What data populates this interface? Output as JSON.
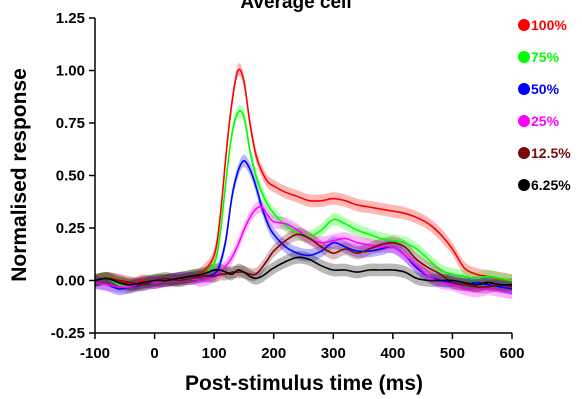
{
  "chart_data": {
    "type": "line",
    "title": "Average cell",
    "xlabel": "Post-stimulus time (ms)",
    "ylabel": "Normalised response",
    "xlim": [
      -100,
      600
    ],
    "ylim": [
      -0.25,
      1.25
    ],
    "xticks": [
      "-100",
      "0",
      "100",
      "200",
      "300",
      "400",
      "500",
      "600"
    ],
    "xtick_values": [
      -100,
      0,
      100,
      200,
      300,
      400,
      500,
      600
    ],
    "yticks": [
      "-0.25",
      "0.00",
      "0.25",
      "0.50",
      "0.75",
      "1.00",
      "1.25"
    ],
    "ytick_values": [
      -0.25,
      0,
      0.25,
      0.5,
      0.75,
      1.0,
      1.25
    ],
    "grid": false,
    "legend_position": "right",
    "x": [
      -100,
      -80,
      -60,
      -40,
      -20,
      0,
      20,
      40,
      60,
      80,
      100,
      110,
      120,
      130,
      140,
      150,
      160,
      170,
      180,
      190,
      200,
      220,
      240,
      260,
      280,
      300,
      320,
      340,
      360,
      380,
      400,
      420,
      440,
      460,
      480,
      500,
      520,
      540,
      560,
      580,
      600
    ],
    "series": [
      {
        "name": "100%",
        "color": "#ff0000",
        "band": 0.03,
        "values": [
          0.0,
          0.01,
          0.0,
          -0.02,
          0.0,
          -0.01,
          0.0,
          0.01,
          0.02,
          0.04,
          0.12,
          0.3,
          0.6,
          0.85,
          1.0,
          0.95,
          0.75,
          0.6,
          0.52,
          0.47,
          0.45,
          0.42,
          0.4,
          0.38,
          0.38,
          0.39,
          0.38,
          0.36,
          0.35,
          0.34,
          0.33,
          0.32,
          0.3,
          0.27,
          0.22,
          0.15,
          0.06,
          0.03,
          0.02,
          0.01,
          0.0
        ]
      },
      {
        "name": "75%",
        "color": "#00ff00",
        "band": 0.03,
        "values": [
          0.0,
          0.01,
          -0.02,
          -0.03,
          -0.01,
          0.0,
          0.01,
          0.0,
          0.02,
          0.03,
          0.08,
          0.22,
          0.48,
          0.7,
          0.8,
          0.78,
          0.62,
          0.5,
          0.42,
          0.36,
          0.32,
          0.26,
          0.23,
          0.21,
          0.24,
          0.29,
          0.27,
          0.24,
          0.22,
          0.2,
          0.19,
          0.18,
          0.15,
          0.1,
          0.05,
          0.03,
          0.02,
          0.01,
          0.02,
          0.01,
          0.0
        ]
      },
      {
        "name": "50%",
        "color": "#0000ff",
        "band": 0.03,
        "values": [
          -0.01,
          -0.02,
          -0.04,
          -0.03,
          -0.02,
          -0.01,
          0.0,
          0.01,
          0.01,
          0.02,
          0.03,
          0.08,
          0.2,
          0.4,
          0.52,
          0.57,
          0.53,
          0.45,
          0.35,
          0.27,
          0.22,
          0.16,
          0.13,
          0.12,
          0.14,
          0.18,
          0.16,
          0.14,
          0.14,
          0.15,
          0.16,
          0.12,
          0.06,
          0.02,
          0.0,
          -0.01,
          -0.02,
          -0.01,
          -0.02,
          -0.03,
          -0.04
        ]
      },
      {
        "name": "25%",
        "color": "#ff00ff",
        "band": 0.03,
        "values": [
          -0.01,
          -0.02,
          -0.03,
          -0.03,
          -0.01,
          -0.01,
          0.0,
          0.0,
          0.01,
          0.0,
          0.02,
          0.04,
          0.07,
          0.11,
          0.17,
          0.24,
          0.3,
          0.34,
          0.35,
          0.31,
          0.28,
          0.27,
          0.24,
          0.2,
          0.18,
          0.19,
          0.2,
          0.18,
          0.17,
          0.16,
          0.16,
          0.12,
          0.07,
          0.02,
          -0.01,
          -0.02,
          -0.04,
          -0.05,
          -0.04,
          -0.05,
          -0.06
        ]
      },
      {
        "name": "12.5%",
        "color": "#7a0a0a",
        "band": 0.03,
        "values": [
          0.0,
          0.01,
          0.0,
          -0.01,
          -0.02,
          0.0,
          0.01,
          0.0,
          0.01,
          0.02,
          0.02,
          0.03,
          0.03,
          0.04,
          0.04,
          0.04,
          0.03,
          0.03,
          0.06,
          0.1,
          0.14,
          0.19,
          0.22,
          0.2,
          0.16,
          0.13,
          0.15,
          0.13,
          0.15,
          0.17,
          0.18,
          0.16,
          0.1,
          0.06,
          0.03,
          -0.01,
          -0.02,
          -0.03,
          -0.03,
          -0.02,
          -0.03
        ]
      },
      {
        "name": "6.25%",
        "color": "#000000",
        "band": 0.03,
        "values": [
          0.0,
          0.01,
          -0.01,
          -0.02,
          -0.01,
          0.0,
          0.0,
          0.01,
          0.02,
          0.03,
          0.05,
          0.05,
          0.04,
          0.03,
          0.05,
          0.04,
          0.02,
          0.01,
          0.02,
          0.04,
          0.06,
          0.09,
          0.11,
          0.1,
          0.07,
          0.05,
          0.05,
          0.04,
          0.05,
          0.05,
          0.05,
          0.04,
          0.01,
          0.0,
          0.0,
          0.0,
          -0.01,
          -0.02,
          -0.01,
          -0.02,
          -0.02
        ]
      }
    ]
  }
}
